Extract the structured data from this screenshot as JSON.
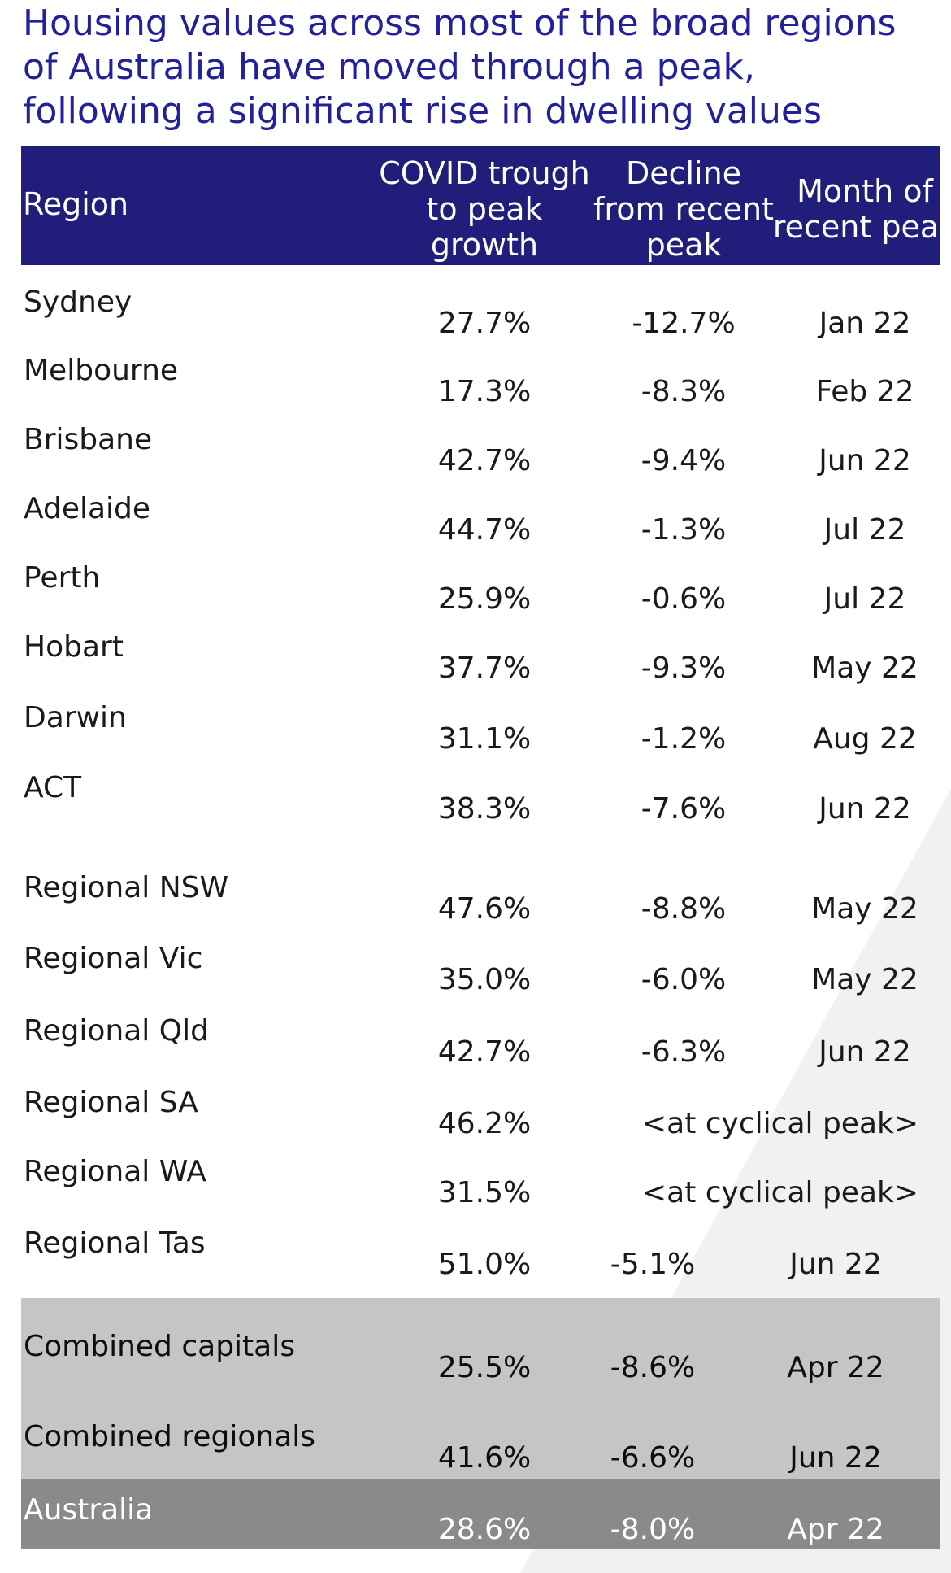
{
  "title_lines": [
    "Housing values across most of the broad regions",
    "of Australia have moved through a peak,",
    "following a significant rise in dwelling values"
  ],
  "table": {
    "headers": {
      "region": "Region",
      "covid": [
        "COVID trough",
        "to peak",
        "growth"
      ],
      "decline": [
        "Decline",
        "from recent",
        "peak"
      ],
      "month": [
        "Month of",
        "recent peak"
      ]
    },
    "rows": [
      {
        "region": "Sydney",
        "covid": "27.7%",
        "decline": "-12.7%",
        "month": "Jan 22"
      },
      {
        "region": "Melbourne",
        "covid": "17.3%",
        "decline": "-8.3%",
        "month": "Feb 22"
      },
      {
        "region": "Brisbane",
        "covid": "42.7%",
        "decline": "-9.4%",
        "month": "Jun 22"
      },
      {
        "region": "Adelaide",
        "covid": "44.7%",
        "decline": "-1.3%",
        "month": "Jul 22"
      },
      {
        "region": "Perth",
        "covid": "25.9%",
        "decline": "-0.6%",
        "month": "Jul 22"
      },
      {
        "region": "Hobart",
        "covid": "37.7%",
        "decline": "-9.3%",
        "month": "May 22"
      },
      {
        "region": "Darwin",
        "covid": "31.1%",
        "decline": "-1.2%",
        "month": "Aug 22"
      },
      {
        "region": "ACT",
        "covid": "38.3%",
        "decline": "-7.6%",
        "month": "Jun 22"
      },
      {
        "region": "Regional NSW",
        "covid": "47.6%",
        "decline": "-8.8%",
        "month": "May 22"
      },
      {
        "region": "Regional Vic",
        "covid": "35.0%",
        "decline": "-6.0%",
        "month": "May 22"
      },
      {
        "region": "Regional Qld",
        "covid": "42.7%",
        "decline": "-6.3%",
        "month": "Jun 22"
      },
      {
        "region": "Regional SA",
        "covid": "46.2%",
        "decline": "<at cyclical peak>",
        "month": ""
      },
      {
        "region": "Regional WA",
        "covid": "31.5%",
        "decline": "<at cyclical peak>",
        "month": ""
      },
      {
        "region": "Regional Tas",
        "covid": "51.0%",
        "decline": "-5.1%",
        "month": "Jun 22"
      },
      {
        "region": "Combined capitals",
        "covid": "25.5%",
        "decline": "-8.6%",
        "month": "Apr 22"
      },
      {
        "region": "Combined regionals",
        "covid": "41.6%",
        "decline": "-6.6%",
        "month": "Jun 22"
      },
      {
        "region": "Australia",
        "covid": "28.6%",
        "decline": "-8.0%",
        "month": "Apr 22"
      }
    ]
  },
  "colors": {
    "title": "#23209c",
    "header_bg": "#211d7a",
    "combined_band": "#c5c5c5",
    "australia_band": "#8a8a8a"
  }
}
